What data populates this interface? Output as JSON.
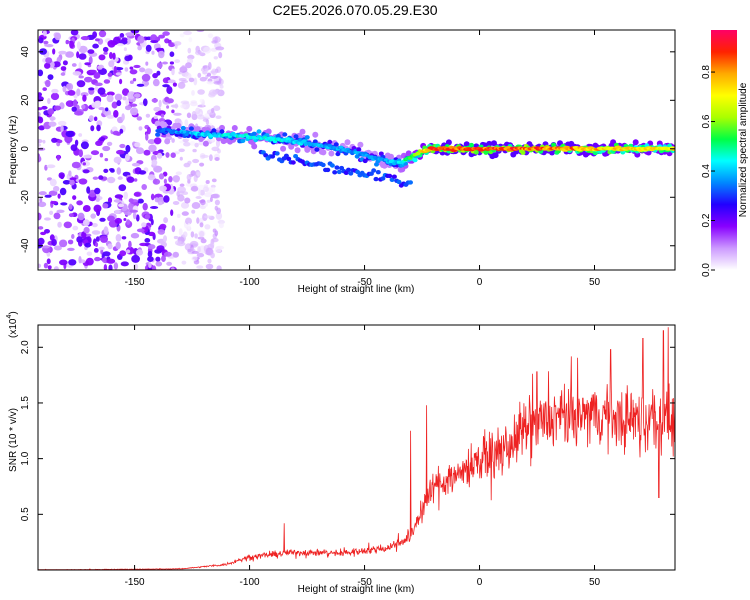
{
  "title": "C2E5.2026.070.05.29.E30",
  "chart_data": [
    {
      "type": "heatmap",
      "name": "spectrogram",
      "xlabel": "Height of straight line (km)",
      "ylabel": "Frequency (Hz)",
      "xlim": [
        -192,
        85
      ],
      "ylim": [
        -50,
        49
      ],
      "xticks": [
        -150,
        -100,
        -50,
        0,
        50
      ],
      "yticks": [
        -40,
        -20,
        0,
        20,
        40
      ],
      "colorbar": {
        "label": "Normalized spectral amplitude",
        "range": [
          0,
          0.97
        ],
        "ticks": [
          0.0,
          0.2,
          0.4,
          0.6,
          0.8
        ],
        "tick_labels": [
          "0.0",
          "0.2",
          "0.4",
          "0.6",
          "0.8"
        ],
        "colormap": [
          "#ffffff",
          "#cc99ff",
          "#8800ff",
          "#2200ff",
          "#0088ff",
          "#00ffff",
          "#00ff44",
          "#aaff00",
          "#ffff00",
          "#ffaa00",
          "#ff2200",
          "#ff0066"
        ]
      },
      "ridge": {
        "x": [
          -140,
          -120,
          -100,
          -80,
          -60,
          -45,
          -35,
          -25,
          -20,
          0,
          20,
          40,
          60,
          85
        ],
        "freq": [
          8,
          6,
          5,
          3,
          0,
          -4,
          -6,
          -1,
          0,
          0,
          0,
          0,
          0,
          0
        ],
        "amplitude": [
          0.35,
          0.45,
          0.5,
          0.45,
          0.4,
          0.4,
          0.45,
          0.75,
          0.9,
          0.92,
          0.9,
          0.88,
          0.8,
          0.75
        ]
      },
      "noise_region": {
        "x": [
          -192,
          -120
        ],
        "freq": [
          -50,
          49
        ],
        "amplitude": 0.18
      }
    },
    {
      "type": "line",
      "name": "snr",
      "xlabel": "Height of straight line (km)",
      "ylabel": "SNR (10 * v/v)",
      "y_multiplier": "(x10",
      "y_multiplier_exp": "4",
      "y_multiplier_close": ")",
      "xlim": [
        -192,
        85
      ],
      "ylim": [
        0,
        2.2
      ],
      "xticks": [
        -150,
        -100,
        -50,
        0,
        50
      ],
      "yticks": [
        0.5,
        1.0,
        1.5,
        2.0
      ],
      "ytick_labels": [
        "0.5",
        "1.0",
        "1.5",
        "2.0"
      ],
      "color": "#ee2222",
      "envelope": {
        "x": [
          -192,
          -130,
          -110,
          -100,
          -80,
          -60,
          -40,
          -30,
          -25,
          -20,
          -10,
          0,
          10,
          20,
          30,
          50,
          70,
          85
        ],
        "y": [
          0.0,
          0.01,
          0.05,
          0.12,
          0.16,
          0.15,
          0.2,
          0.3,
          0.55,
          0.75,
          0.85,
          1.0,
          1.05,
          1.25,
          1.35,
          1.4,
          1.35,
          1.35
        ]
      },
      "peaks": [
        {
          "x": -85,
          "y": 0.42
        },
        {
          "x": -23,
          "y": 1.48
        },
        {
          "x": -30,
          "y": 1.25
        },
        {
          "x": 25,
          "y": 1.78
        },
        {
          "x": 57,
          "y": 1.98
        },
        {
          "x": 71,
          "y": 2.08
        },
        {
          "x": 80,
          "y": 2.15
        },
        {
          "x": 82,
          "y": 2.18
        },
        {
          "x": 78,
          "y": 0.65
        }
      ]
    }
  ]
}
